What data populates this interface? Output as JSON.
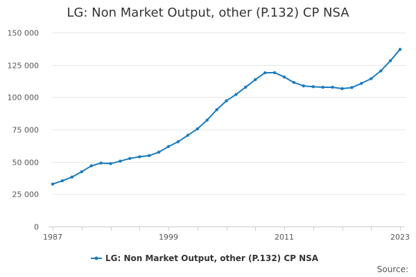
{
  "chart_data": {
    "type": "line",
    "title": "LG: Non Market Output, other (P.132) CP NSA",
    "xlabel": "",
    "ylabel": "",
    "x_tick_labels": [
      "1987",
      "1999",
      "2011",
      "2023"
    ],
    "y_tick_labels": [
      "0",
      "25 000",
      "50 000",
      "75 000",
      "100 000",
      "125 000",
      "150 000"
    ],
    "y_ticks": [
      0,
      25000,
      50000,
      75000,
      100000,
      125000,
      150000
    ],
    "ylim": [
      0,
      150000
    ],
    "xlim": [
      1987,
      2023
    ],
    "grid": true,
    "legend_position": "bottom-center",
    "series": [
      {
        "name": "LG: Non Market Output, other (P.132) CP NSA",
        "color": "#1a7abf",
        "x": [
          1987,
          1988,
          1989,
          1990,
          1991,
          1992,
          1993,
          1994,
          1995,
          1996,
          1997,
          1998,
          1999,
          2000,
          2001,
          2002,
          2003,
          2004,
          2005,
          2006,
          2007,
          2008,
          2009,
          2010,
          2011,
          2012,
          2013,
          2014,
          2015,
          2016,
          2017,
          2018,
          2019,
          2020,
          2021,
          2022,
          2023
        ],
        "values": [
          32800,
          35300,
          38200,
          42300,
          46900,
          49000,
          48600,
          50500,
          52600,
          53900,
          54800,
          57500,
          61800,
          65500,
          70500,
          75500,
          82300,
          90300,
          97200,
          102100,
          107800,
          113600,
          118900,
          119000,
          115600,
          111400,
          108700,
          108100,
          107700,
          107700,
          106600,
          107400,
          110700,
          114300,
          120300,
          128200,
          137000
        ]
      }
    ]
  },
  "legend": {
    "label": "LG: Non Market Output, other (P.132) CP NSA"
  },
  "credits": {
    "label": "Source:"
  }
}
